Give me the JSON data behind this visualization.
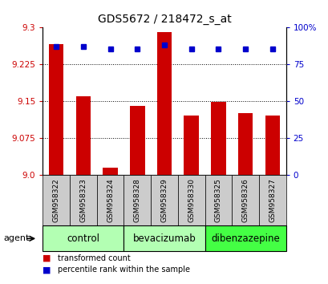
{
  "title": "GDS5672 / 218472_s_at",
  "samples": [
    "GSM958322",
    "GSM958323",
    "GSM958324",
    "GSM958328",
    "GSM958329",
    "GSM958330",
    "GSM958325",
    "GSM958326",
    "GSM958327"
  ],
  "transformed_count": [
    9.265,
    9.16,
    9.015,
    9.14,
    9.29,
    9.12,
    9.148,
    9.125,
    9.12
  ],
  "percentile_rank": [
    87,
    87,
    85,
    85,
    88,
    85,
    85,
    85,
    85
  ],
  "ylim_left": [
    9.0,
    9.3
  ],
  "ylim_right": [
    0,
    100
  ],
  "yticks_left": [
    9.0,
    9.075,
    9.15,
    9.225,
    9.3
  ],
  "yticks_right": [
    0,
    25,
    50,
    75,
    100
  ],
  "groups": [
    {
      "label": "control",
      "start": 0,
      "end": 2,
      "color": "#b3ffb3"
    },
    {
      "label": "bevacizumab",
      "start": 3,
      "end": 5,
      "color": "#b3ffb3"
    },
    {
      "label": "dibenzazepine",
      "start": 6,
      "end": 8,
      "color": "#44ff44"
    }
  ],
  "bar_color": "#cc0000",
  "dot_color": "#0000cc",
  "bar_width": 0.55,
  "agent_label": "agent",
  "legend_bar_label": "transformed count",
  "legend_dot_label": "percentile rank within the sample",
  "title_fontsize": 10,
  "tick_fontsize": 7.5,
  "label_fontsize": 8,
  "background_color": "#ffffff",
  "plot_bg_color": "#ffffff",
  "group_label_fontsize": 8.5,
  "sample_label_fontsize": 6.5,
  "sample_box_color": "#cccccc"
}
